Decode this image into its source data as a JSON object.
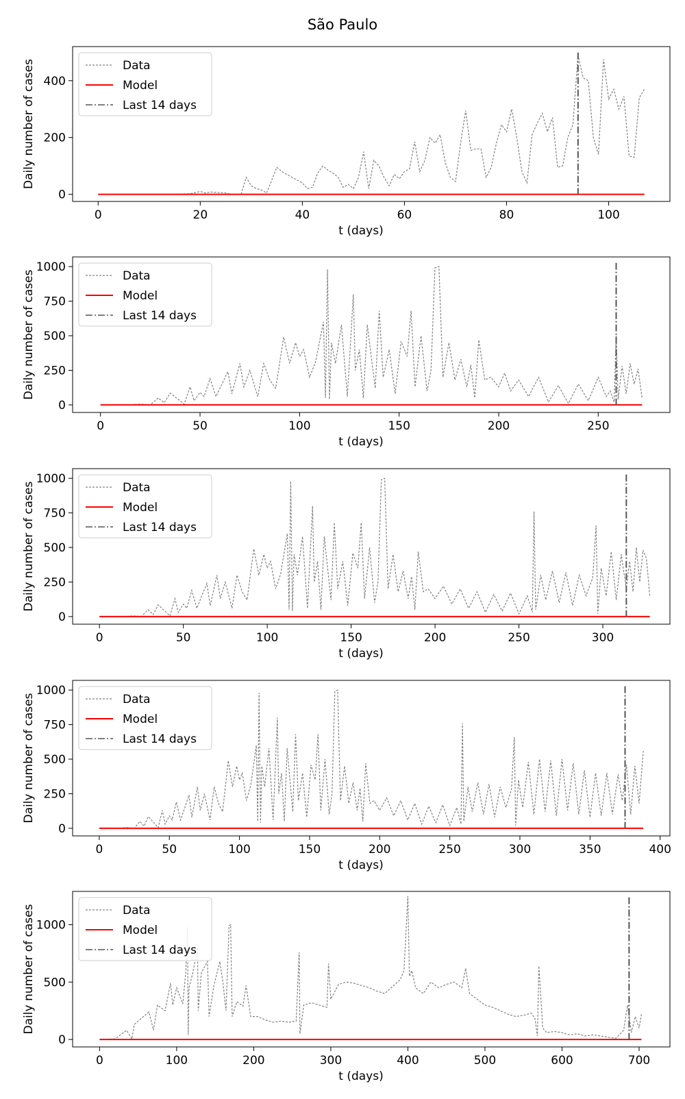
{
  "suptitle": "São Paulo",
  "colors": {
    "data": "#808080",
    "model": "#ff0000",
    "last14": "#555555",
    "axis": "#000000"
  },
  "chart_data": [
    {
      "type": "line",
      "xlabel": "t (days)",
      "ylabel": "Daily number of cases",
      "xlim": [
        -5,
        112
      ],
      "ylim": [
        -25,
        520
      ],
      "xticks": [
        0,
        20,
        40,
        60,
        80,
        100
      ],
      "yticks": [
        0,
        200,
        400
      ],
      "legend": [
        "Data",
        "Model",
        "Last 14 days"
      ],
      "legend_position": "top-left",
      "last14_x": 94,
      "model": {
        "x": [
          0,
          107
        ],
        "y": [
          0,
          0
        ]
      },
      "data": {
        "x": [
          0,
          14,
          18,
          20,
          21,
          22,
          24,
          25,
          26,
          27,
          28,
          29,
          30,
          31,
          32,
          33,
          34,
          35,
          36,
          37,
          38,
          39,
          40,
          41,
          42,
          43,
          44,
          45,
          46,
          47,
          48,
          49,
          50,
          51,
          52,
          53,
          54,
          55,
          56,
          57,
          58,
          59,
          60,
          61,
          62,
          63,
          64,
          65,
          66,
          67,
          68,
          69,
          70,
          71,
          72,
          73,
          74,
          75,
          76,
          77,
          78,
          79,
          80,
          81,
          82,
          83,
          84,
          85,
          86,
          87,
          88,
          89,
          90,
          91,
          92,
          93,
          94,
          95,
          96,
          97,
          98,
          99,
          100,
          101,
          102,
          103,
          104,
          105,
          106,
          107
        ],
        "y": [
          0,
          0,
          2,
          10,
          5,
          8,
          6,
          5,
          0,
          0,
          0,
          60,
          30,
          20,
          15,
          5,
          50,
          95,
          80,
          70,
          60,
          50,
          40,
          20,
          25,
          75,
          100,
          85,
          75,
          60,
          25,
          35,
          20,
          60,
          150,
          20,
          120,
          100,
          60,
          30,
          70,
          55,
          80,
          90,
          185,
          80,
          120,
          200,
          180,
          210,
          110,
          60,
          45,
          180,
          295,
          155,
          160,
          160,
          60,
          95,
          180,
          245,
          220,
          300,
          200,
          80,
          40,
          210,
          250,
          285,
          220,
          270,
          95,
          100,
          200,
          245,
          490,
          410,
          400,
          200,
          140,
          475,
          335,
          370,
          300,
          345,
          135,
          130,
          340,
          370
        ]
      }
    },
    {
      "type": "line",
      "xlabel": "t (days)",
      "ylabel": "Daily number of cases",
      "xlim": [
        -14,
        286
      ],
      "ylim": [
        -55,
        1070
      ],
      "xticks": [
        0,
        50,
        100,
        150,
        200,
        250
      ],
      "yticks": [
        0,
        250,
        500,
        750,
        1000
      ],
      "legend": [
        "Data",
        "Model",
        "Last 14 days"
      ],
      "legend_position": "top-left",
      "last14_x": 259,
      "model": {
        "x": [
          0,
          272
        ],
        "y": [
          0,
          0
        ]
      },
      "data": {
        "x": [
          0,
          14,
          20,
          25,
          29,
          32,
          35,
          39,
          42,
          45,
          47,
          50,
          52,
          55,
          58,
          61,
          64,
          66,
          70,
          72,
          75,
          79,
          82,
          85,
          88,
          92,
          95,
          98,
          100,
          102,
          105,
          108,
          112,
          113,
          114,
          115,
          116,
          118,
          121,
          124,
          127,
          128,
          130,
          132,
          134,
          138,
          140,
          142,
          145,
          148,
          151,
          154,
          156,
          158,
          161,
          164,
          166,
          168,
          170,
          172,
          175,
          178,
          181,
          184,
          186,
          188,
          190,
          193,
          196,
          200,
          203,
          206,
          210,
          215,
          220,
          225,
          230,
          235,
          240,
          245,
          250,
          254,
          256,
          258,
          259,
          260,
          262,
          264,
          266,
          268,
          270,
          272
        ],
        "y": [
          0,
          0,
          5,
          0,
          50,
          15,
          85,
          40,
          5,
          130,
          30,
          90,
          60,
          190,
          60,
          150,
          240,
          80,
          300,
          130,
          250,
          60,
          300,
          180,
          120,
          490,
          300,
          450,
          350,
          400,
          200,
          310,
          600,
          50,
          980,
          40,
          450,
          300,
          580,
          60,
          800,
          250,
          400,
          50,
          580,
          120,
          680,
          200,
          400,
          80,
          460,
          350,
          680,
          130,
          500,
          100,
          250,
          990,
          1000,
          200,
          450,
          180,
          330,
          130,
          290,
          50,
          470,
          180,
          200,
          130,
          230,
          100,
          180,
          60,
          200,
          20,
          140,
          10,
          150,
          30,
          200,
          60,
          100,
          20,
          500,
          40,
          280,
          80,
          300,
          150,
          260,
          50
        ]
      }
    },
    {
      "type": "line",
      "xlabel": "t (days)",
      "ylabel": "Daily number of cases",
      "xlim": [
        -16,
        340
      ],
      "ylim": [
        -55,
        1070
      ],
      "xticks": [
        0,
        50,
        100,
        150,
        200,
        250,
        300
      ],
      "yticks": [
        0,
        250,
        500,
        750,
        1000
      ],
      "legend": [
        "Data",
        "Model",
        "Last 14 days"
      ],
      "legend_position": "top-left",
      "last14_x": 314,
      "model": {
        "x": [
          0,
          328
        ],
        "y": [
          0,
          0
        ]
      },
      "data": {
        "x": [
          0,
          14,
          20,
          25,
          29,
          32,
          35,
          39,
          42,
          45,
          47,
          50,
          52,
          55,
          58,
          61,
          64,
          66,
          70,
          72,
          75,
          79,
          82,
          85,
          88,
          92,
          95,
          98,
          100,
          102,
          105,
          108,
          112,
          113,
          114,
          115,
          116,
          118,
          121,
          124,
          127,
          128,
          130,
          132,
          134,
          138,
          140,
          142,
          145,
          148,
          151,
          154,
          156,
          158,
          161,
          164,
          166,
          168,
          170,
          172,
          175,
          178,
          181,
          184,
          186,
          188,
          190,
          193,
          196,
          200,
          205,
          210,
          215,
          220,
          225,
          230,
          235,
          240,
          245,
          250,
          255,
          258,
          259,
          260,
          263,
          266,
          270,
          274,
          278,
          282,
          286,
          290,
          294,
          296,
          297,
          299,
          302,
          305,
          308,
          311,
          314,
          316,
          318,
          320,
          322,
          324,
          326,
          328
        ],
        "y": [
          0,
          0,
          5,
          0,
          50,
          15,
          85,
          40,
          5,
          130,
          30,
          90,
          60,
          190,
          60,
          150,
          240,
          80,
          300,
          130,
          250,
          60,
          300,
          180,
          120,
          490,
          300,
          450,
          350,
          400,
          200,
          310,
          600,
          50,
          980,
          40,
          450,
          300,
          580,
          60,
          800,
          250,
          400,
          50,
          580,
          120,
          680,
          200,
          400,
          80,
          460,
          350,
          680,
          130,
          500,
          100,
          250,
          990,
          1000,
          200,
          450,
          180,
          330,
          130,
          290,
          50,
          470,
          180,
          200,
          130,
          220,
          90,
          200,
          60,
          180,
          30,
          160,
          40,
          170,
          20,
          150,
          30,
          760,
          50,
          300,
          120,
          330,
          100,
          320,
          80,
          300,
          150,
          280,
          660,
          20,
          350,
          150,
          470,
          120,
          450,
          200,
          400,
          180,
          500,
          250,
          480,
          420,
          150
        ]
      }
    },
    {
      "type": "line",
      "xlabel": "t (days)",
      "ylabel": "Daily number of cases",
      "xlim": [
        -19,
        407
      ],
      "ylim": [
        -55,
        1070
      ],
      "xticks": [
        0,
        50,
        100,
        150,
        200,
        250,
        300,
        350,
        400
      ],
      "yticks": [
        0,
        250,
        500,
        750,
        1000
      ],
      "legend": [
        "Data",
        "Model",
        "Last 14 days"
      ],
      "legend_position": "top-left",
      "last14_x": 375,
      "model": {
        "x": [
          0,
          388
        ],
        "y": [
          0,
          0
        ]
      },
      "data": {
        "x": [
          0,
          14,
          20,
          25,
          29,
          32,
          35,
          39,
          42,
          45,
          47,
          50,
          52,
          55,
          58,
          61,
          64,
          66,
          70,
          72,
          75,
          79,
          82,
          85,
          88,
          92,
          95,
          98,
          100,
          102,
          105,
          108,
          112,
          113,
          114,
          115,
          116,
          118,
          121,
          124,
          127,
          128,
          130,
          132,
          134,
          138,
          140,
          142,
          145,
          148,
          151,
          154,
          156,
          158,
          161,
          164,
          166,
          168,
          170,
          172,
          175,
          178,
          181,
          184,
          186,
          188,
          190,
          193,
          196,
          200,
          205,
          210,
          215,
          220,
          225,
          230,
          235,
          240,
          245,
          250,
          255,
          258,
          259,
          260,
          263,
          266,
          270,
          274,
          278,
          282,
          286,
          290,
          294,
          296,
          297,
          299,
          302,
          306,
          310,
          314,
          318,
          322,
          326,
          330,
          334,
          338,
          342,
          346,
          350,
          354,
          358,
          362,
          366,
          370,
          373,
          376,
          379,
          382,
          385,
          388
        ],
        "y": [
          0,
          0,
          5,
          0,
          50,
          15,
          85,
          40,
          5,
          130,
          30,
          90,
          60,
          190,
          60,
          150,
          240,
          80,
          300,
          130,
          250,
          60,
          300,
          180,
          120,
          490,
          300,
          450,
          350,
          400,
          200,
          310,
          600,
          50,
          980,
          40,
          450,
          300,
          580,
          60,
          800,
          250,
          400,
          50,
          580,
          120,
          680,
          200,
          400,
          80,
          460,
          350,
          680,
          130,
          500,
          100,
          250,
          990,
          1000,
          200,
          450,
          180,
          330,
          130,
          290,
          50,
          470,
          180,
          200,
          130,
          220,
          90,
          200,
          60,
          180,
          30,
          160,
          40,
          170,
          20,
          150,
          30,
          760,
          50,
          300,
          120,
          330,
          100,
          320,
          80,
          300,
          150,
          280,
          660,
          20,
          350,
          150,
          480,
          100,
          500,
          120,
          490,
          90,
          500,
          130,
          470,
          100,
          420,
          80,
          400,
          90,
          400,
          100,
          390,
          200,
          460,
          100,
          450,
          180,
          560
        ]
      }
    },
    {
      "type": "line",
      "xlabel": "t (days)",
      "ylabel": "Daily number of cases",
      "xlim": [
        -35,
        740
      ],
      "ylim": [
        -65,
        1290
      ],
      "xticks": [
        0,
        100,
        200,
        300,
        400,
        500,
        600,
        700
      ],
      "yticks": [
        0,
        500,
        1000
      ],
      "legend": [
        "Data",
        "Model",
        "Last 14 days"
      ],
      "legend_position": "top-left",
      "last14_x": 687,
      "model": {
        "x": [
          0,
          703
        ],
        "y": [
          0,
          0
        ]
      },
      "data": {
        "x": [
          0,
          20,
          29,
          35,
          42,
          45,
          55,
          64,
          70,
          75,
          85,
          92,
          95,
          100,
          108,
          112,
          114,
          115,
          116,
          121,
          127,
          128,
          132,
          140,
          142,
          148,
          156,
          160,
          164,
          168,
          170,
          172,
          178,
          186,
          190,
          196,
          205,
          215,
          225,
          235,
          245,
          255,
          259,
          260,
          265,
          275,
          285,
          295,
          297,
          300,
          310,
          320,
          330,
          340,
          350,
          360,
          370,
          380,
          390,
          395,
          400,
          402,
          405,
          410,
          420,
          430,
          440,
          450,
          460,
          470,
          475,
          480,
          490,
          500,
          510,
          520,
          530,
          540,
          550,
          560,
          565,
          568,
          570,
          575,
          580,
          590,
          600,
          610,
          620,
          630,
          640,
          650,
          660,
          670,
          680,
          685,
          690,
          695,
          700,
          703
        ],
        "y": [
          0,
          5,
          50,
          80,
          5,
          130,
          190,
          240,
          80,
          300,
          250,
          490,
          300,
          450,
          310,
          600,
          980,
          40,
          450,
          580,
          800,
          250,
          580,
          680,
          200,
          460,
          680,
          500,
          250,
          990,
          1000,
          200,
          330,
          290,
          470,
          200,
          200,
          170,
          150,
          160,
          150,
          160,
          760,
          50,
          300,
          320,
          300,
          280,
          660,
          350,
          480,
          500,
          490,
          470,
          450,
          420,
          400,
          460,
          520,
          600,
          1250,
          550,
          600,
          450,
          400,
          500,
          450,
          480,
          500,
          450,
          620,
          400,
          350,
          300,
          280,
          250,
          220,
          200,
          210,
          230,
          180,
          30,
          640,
          100,
          60,
          70,
          60,
          40,
          50,
          30,
          40,
          30,
          20,
          10,
          80,
          300,
          60,
          200,
          100,
          220
        ]
      }
    }
  ]
}
